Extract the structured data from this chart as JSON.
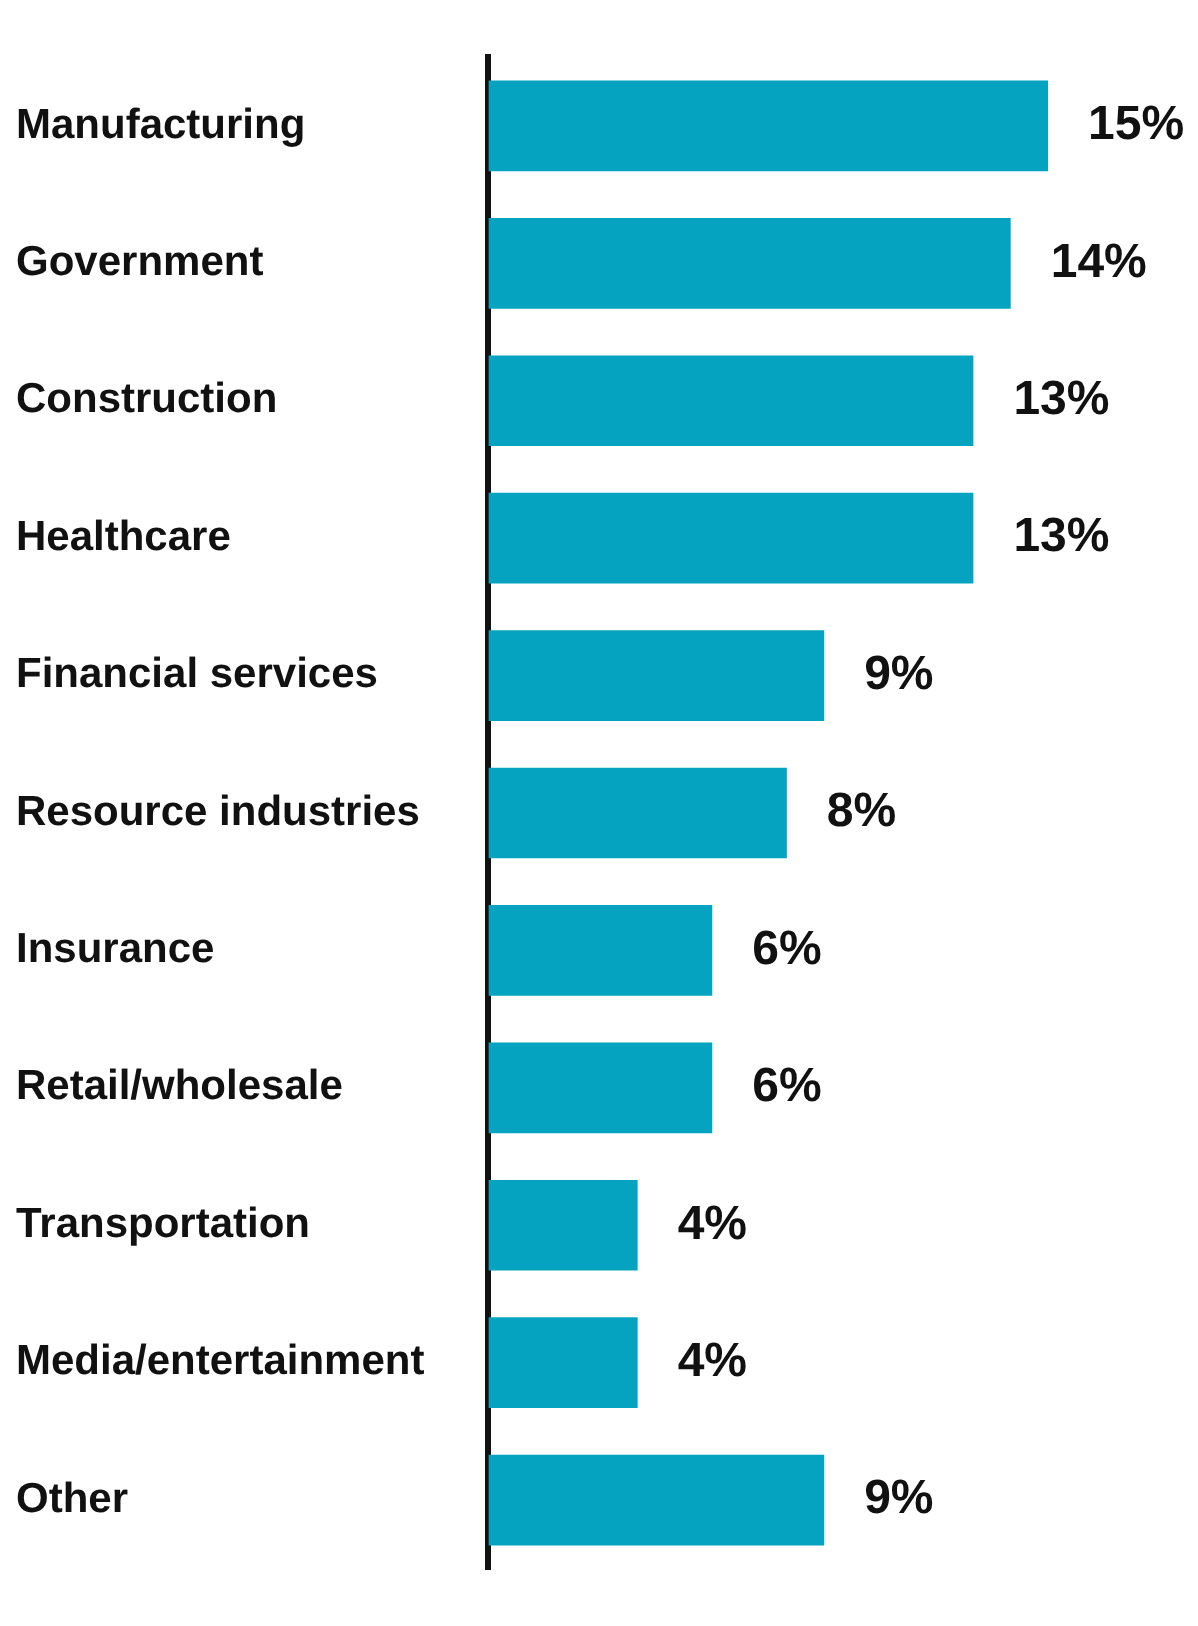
{
  "chart_data": {
    "type": "bar",
    "orientation": "horizontal",
    "categories": [
      "Manufacturing",
      "Government",
      "Construction",
      "Healthcare",
      "Financial services",
      "Resource industries",
      "Insurance",
      "Retail/wholesale",
      "Transportation",
      "Media/entertainment",
      "Other"
    ],
    "values": [
      15,
      14,
      13,
      13,
      9,
      8,
      6,
      6,
      4,
      4,
      9
    ],
    "value_labels": [
      "15%",
      "14%",
      "13%",
      "13%",
      "9%",
      "8%",
      "6%",
      "6%",
      "4%",
      "4%",
      "9%"
    ],
    "color": "#05a3c0",
    "legend": false,
    "tick_labels": "y"
  }
}
